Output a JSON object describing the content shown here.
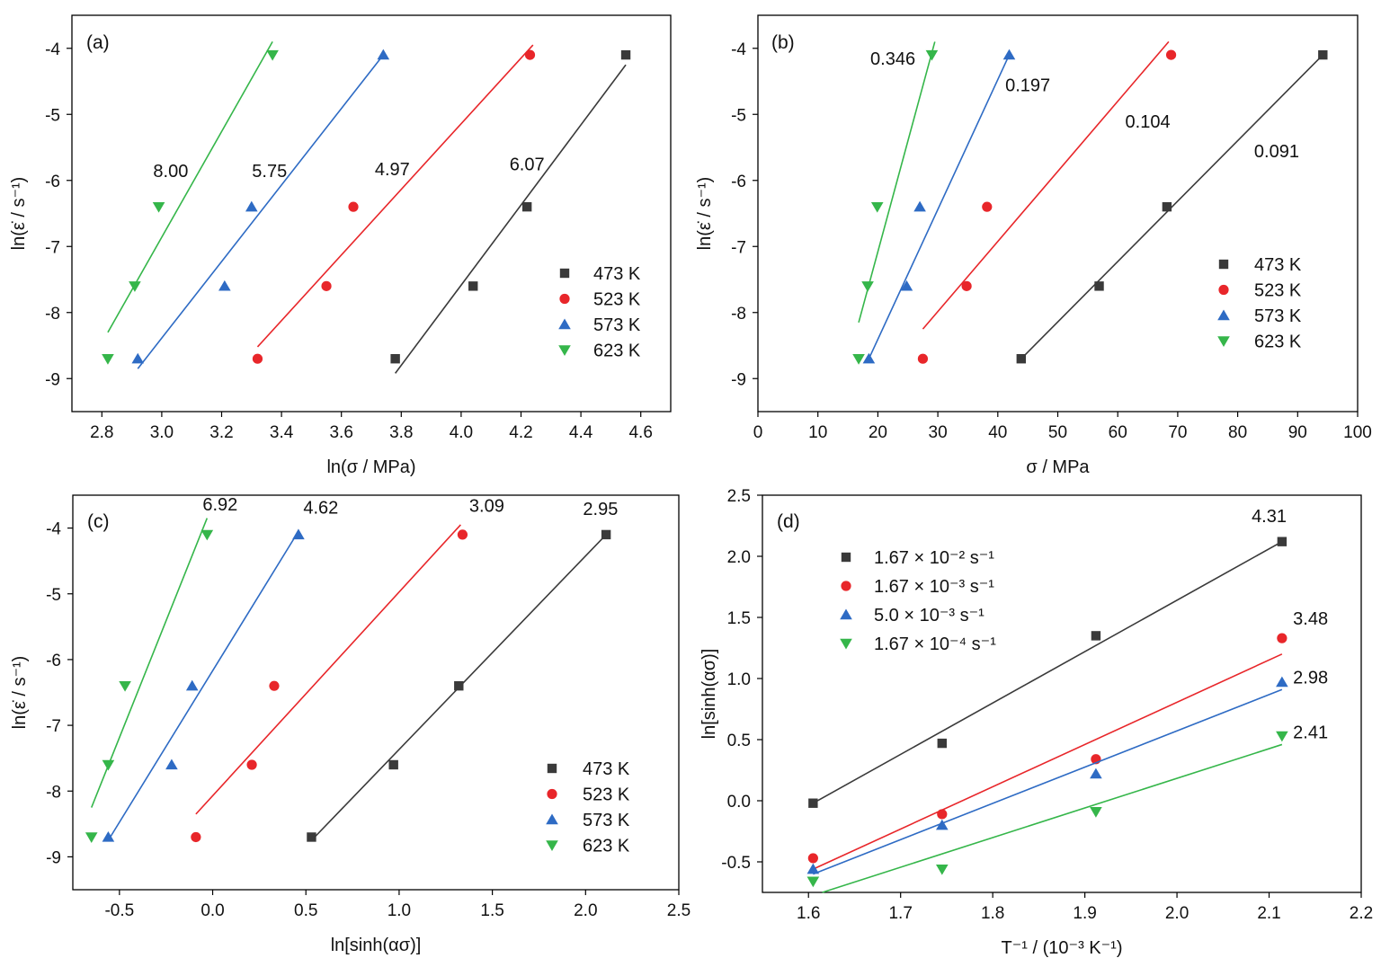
{
  "colors": {
    "473 K": "#3a3a3a",
    "523 K": "#e8262a",
    "573 K": "#2e6bc4",
    "623 K": "#35b64a"
  },
  "chart_data": [
    {
      "panel": "(a)",
      "type": "scatter",
      "xlabel": "ln(σ / MPa)",
      "ylabel": "ln(ε̇ / s⁻¹)",
      "xlim": [
        2.7,
        4.7
      ],
      "ylim": [
        -9.5,
        -3.5
      ],
      "xticks": [
        2.8,
        3.0,
        3.2,
        3.4,
        3.6,
        3.8,
        4.0,
        4.2,
        4.4,
        4.6
      ],
      "xtick_labels": [
        "2.8",
        "3.0",
        "3.2",
        "3.4",
        "3.6",
        "3.8",
        "4.0",
        "4.2",
        "4.4",
        "4.6"
      ],
      "yticks": [
        -9,
        -8,
        -7,
        -6,
        -5,
        -4
      ],
      "ytick_labels": [
        "-9",
        "-8",
        "-7",
        "-6",
        "-5",
        "-4"
      ],
      "legend_position": "lower-right",
      "series": [
        {
          "name": "473 K",
          "marker": "square",
          "x": [
            3.78,
            4.04,
            4.22,
            4.55
          ],
          "y": [
            -8.7,
            -7.6,
            -6.4,
            -4.1
          ],
          "fit": [
            [
              3.78,
              -8.92
            ],
            [
              4.55,
              -4.25
            ]
          ]
        },
        {
          "name": "523 K",
          "marker": "circle",
          "x": [
            3.32,
            3.55,
            3.64,
            4.23
          ],
          "y": [
            -8.7,
            -7.6,
            -6.4,
            -4.1
          ],
          "fit": [
            [
              3.32,
              -8.52
            ],
            [
              4.24,
              -3.95
            ]
          ]
        },
        {
          "name": "573 K",
          "marker": "triangle-up",
          "x": [
            2.92,
            3.21,
            3.3,
            3.74
          ],
          "y": [
            -8.7,
            -7.6,
            -6.4,
            -4.1
          ],
          "fit": [
            [
              2.92,
              -8.85
            ],
            [
              3.74,
              -4.1
            ]
          ]
        },
        {
          "name": "623 K",
          "marker": "triangle-down",
          "x": [
            2.82,
            2.91,
            2.99,
            3.37
          ],
          "y": [
            -8.7,
            -7.6,
            -6.4,
            -4.1
          ],
          "fit": [
            [
              2.82,
              -8.3
            ],
            [
              3.37,
              -3.9
            ]
          ]
        }
      ],
      "annotations": [
        {
          "text": "8.00",
          "x": 3.03,
          "y": -5.95
        },
        {
          "text": "5.75",
          "x": 3.36,
          "y": -5.95
        },
        {
          "text": "4.97",
          "x": 3.77,
          "y": -5.92
        },
        {
          "text": "6.07",
          "x": 4.22,
          "y": -5.85
        }
      ]
    },
    {
      "panel": "(b)",
      "type": "scatter",
      "xlabel": "σ / MPa",
      "ylabel": "ln(ε̇ / s⁻¹)",
      "xlim": [
        0,
        100
      ],
      "ylim": [
        -9.5,
        -3.5
      ],
      "xticks": [
        0,
        10,
        20,
        30,
        40,
        50,
        60,
        70,
        80,
        90,
        100
      ],
      "xtick_labels": [
        "0",
        "10",
        "20",
        "30",
        "40",
        "50",
        "60",
        "70",
        "80",
        "90",
        "100"
      ],
      "yticks": [
        -9,
        -8,
        -7,
        -6,
        -5,
        -4
      ],
      "ytick_labels": [
        "-9",
        "-8",
        "-7",
        "-6",
        "-5",
        "-4"
      ],
      "legend_position": "lower-right",
      "series": [
        {
          "name": "473 K",
          "marker": "square",
          "x": [
            43.9,
            56.9,
            68.2,
            94.2
          ],
          "y": [
            -8.7,
            -7.6,
            -6.4,
            -4.1
          ],
          "fit": [
            [
              43.9,
              -8.7
            ],
            [
              94.2,
              -4.1
            ]
          ]
        },
        {
          "name": "523 K",
          "marker": "circle",
          "x": [
            27.5,
            34.8,
            38.2,
            68.9
          ],
          "y": [
            -8.7,
            -7.6,
            -6.4,
            -4.1
          ],
          "fit": [
            [
              27.5,
              -8.25
            ],
            [
              68.5,
              -3.9
            ]
          ]
        },
        {
          "name": "573 K",
          "marker": "triangle-up",
          "x": [
            18.5,
            24.8,
            27.0,
            41.9
          ],
          "y": [
            -8.7,
            -7.6,
            -6.4,
            -4.1
          ],
          "fit": [
            [
              18.5,
              -8.7
            ],
            [
              41.9,
              -4.1
            ]
          ]
        },
        {
          "name": "623 K",
          "marker": "triangle-down",
          "x": [
            16.8,
            18.3,
            19.9,
            29.0
          ],
          "y": [
            -8.7,
            -7.6,
            -6.4,
            -4.1
          ],
          "fit": [
            [
              16.8,
              -8.15
            ],
            [
              29.5,
              -3.9
            ]
          ]
        }
      ],
      "annotations": [
        {
          "text": "0.346",
          "x": 22.5,
          "y": -4.25
        },
        {
          "text": "0.197",
          "x": 45.0,
          "y": -4.65
        },
        {
          "text": "0.104",
          "x": 65.0,
          "y": -5.2
        },
        {
          "text": "0.091",
          "x": 86.5,
          "y": -5.65
        }
      ]
    },
    {
      "panel": "(c)",
      "type": "scatter",
      "xlabel": "ln[sinh(ασ)]",
      "ylabel": "ln(ε̇ / s⁻¹)",
      "xlim": [
        -0.75,
        2.5
      ],
      "ylim": [
        -9.5,
        -3.5
      ],
      "xticks": [
        -0.5,
        0.0,
        0.5,
        1.0,
        1.5,
        2.0,
        2.5
      ],
      "xtick_labels": [
        "-0.5",
        "0.0",
        "0.5",
        "1.0",
        "1.5",
        "2.0",
        "2.5"
      ],
      "yticks": [
        -9,
        -8,
        -7,
        -6,
        -5,
        -4
      ],
      "ytick_labels": [
        "-9",
        "-8",
        "-7",
        "-6",
        "-5",
        "-4"
      ],
      "legend_position": "lower-right",
      "series": [
        {
          "name": "473 K",
          "marker": "square",
          "x": [
            0.53,
            0.97,
            1.32,
            2.11
          ],
          "y": [
            -8.7,
            -7.6,
            -6.4,
            -4.1
          ],
          "fit": [
            [
              0.53,
              -8.75
            ],
            [
              2.11,
              -4.1
            ]
          ]
        },
        {
          "name": "523 K",
          "marker": "circle",
          "x": [
            -0.09,
            0.21,
            0.33,
            1.34
          ],
          "y": [
            -8.7,
            -7.6,
            -6.4,
            -4.1
          ],
          "fit": [
            [
              -0.09,
              -8.35
            ],
            [
              1.33,
              -3.95
            ]
          ]
        },
        {
          "name": "573 K",
          "marker": "triangle-up",
          "x": [
            -0.56,
            -0.22,
            -0.11,
            0.46
          ],
          "y": [
            -8.7,
            -7.6,
            -6.4,
            -4.1
          ],
          "fit": [
            [
              -0.56,
              -8.75
            ],
            [
              0.46,
              -4.05
            ]
          ]
        },
        {
          "name": "623 K",
          "marker": "triangle-down",
          "x": [
            -0.65,
            -0.56,
            -0.47,
            -0.03
          ],
          "y": [
            -8.7,
            -7.6,
            -6.4,
            -4.1
          ],
          "fit": [
            [
              -0.65,
              -8.25
            ],
            [
              -0.03,
              -3.85
            ]
          ]
        }
      ],
      "annotations": [
        {
          "text": "6.92",
          "x": 0.04,
          "y": -3.73
        },
        {
          "text": "4.62",
          "x": 0.58,
          "y": -3.78
        },
        {
          "text": "3.09",
          "x": 1.47,
          "y": -3.75
        },
        {
          "text": "2.95",
          "x": 2.08,
          "y": -3.8
        }
      ]
    },
    {
      "panel": "(d)",
      "type": "scatter",
      "xlabel": "T⁻¹ / (10⁻³ K⁻¹)",
      "ylabel": "ln[sinh(ασ)]",
      "xlim": [
        1.55,
        2.2
      ],
      "ylim": [
        -0.75,
        2.5
      ],
      "xticks": [
        1.6,
        1.7,
        1.8,
        1.9,
        2.0,
        2.1,
        2.2
      ],
      "xtick_labels": [
        "1.6",
        "1.7",
        "1.8",
        "1.9",
        "2.0",
        "2.1",
        "2.2"
      ],
      "yticks": [
        -0.5,
        0.0,
        0.5,
        1.0,
        1.5,
        2.0,
        2.5
      ],
      "ytick_labels": [
        "-0.5",
        "0.0",
        "0.5",
        "1.0",
        "1.5",
        "2.0",
        "2.5"
      ],
      "legend_position": "upper-left",
      "series": [
        {
          "name": "1.67 × 10⁻² s⁻¹",
          "marker": "square",
          "color_key": "473 K",
          "x": [
            1.605,
            1.745,
            1.912,
            2.114
          ],
          "y": [
            -0.02,
            0.47,
            1.35,
            2.12
          ],
          "fit": [
            [
              1.605,
              -0.02
            ],
            [
              2.114,
              2.12
            ]
          ]
        },
        {
          "name": "1.67 × 10⁻³ s⁻¹",
          "marker": "circle",
          "color_key": "523 K",
          "x": [
            1.605,
            1.745,
            1.912,
            2.114
          ],
          "y": [
            -0.47,
            -0.11,
            0.34,
            1.33
          ],
          "fit": [
            [
              1.605,
              -0.56
            ],
            [
              2.114,
              1.2
            ]
          ]
        },
        {
          "name": "5.0 × 10⁻³ s⁻¹",
          "marker": "triangle-up",
          "color_key": "573 K",
          "x": [
            1.605,
            1.745,
            1.912,
            2.114
          ],
          "y": [
            -0.56,
            -0.2,
            0.22,
            0.97
          ],
          "fit": [
            [
              1.605,
              -0.6
            ],
            [
              2.114,
              0.91
            ]
          ]
        },
        {
          "name": "1.67 × 10⁻⁴ s⁻¹",
          "marker": "triangle-down",
          "color_key": "623 K",
          "x": [
            1.605,
            1.745,
            1.912,
            2.114
          ],
          "y": [
            -0.66,
            -0.56,
            -0.09,
            0.53
          ],
          "fit": [
            [
              1.615,
              -0.75
            ],
            [
              2.114,
              0.46
            ]
          ]
        }
      ],
      "annotations": [
        {
          "text": "4.31",
          "x": 2.1,
          "y": 2.28
        },
        {
          "text": "3.48",
          "x": 2.145,
          "y": 1.44
        },
        {
          "text": "2.98",
          "x": 2.145,
          "y": 0.96
        },
        {
          "text": "2.41",
          "x": 2.145,
          "y": 0.51
        }
      ]
    }
  ]
}
